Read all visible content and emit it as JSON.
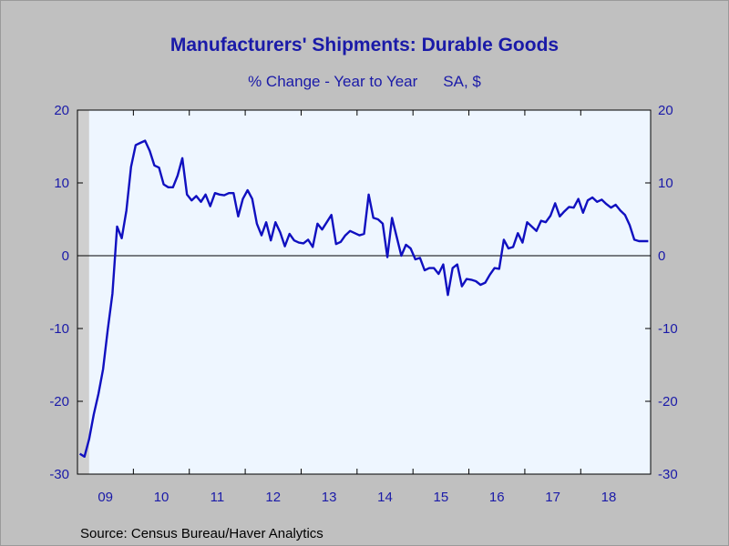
{
  "chart_data": {
    "type": "line",
    "title": "Manufacturers' Shipments: Durable Goods",
    "subtitle_left": "% Change - Year to Year",
    "subtitle_right": "SA, $",
    "source": "Source:  Census Bureau/Haver Analytics",
    "xlabel": "",
    "ylabel": "",
    "ylim": [
      -30,
      20
    ],
    "yticks": [
      20,
      10,
      0,
      -10,
      -20,
      -30
    ],
    "y_tick_labels_left": [
      "20",
      "10",
      "0",
      "-10",
      "-20",
      "-30"
    ],
    "y_tick_labels_right": [
      "20",
      "10",
      "0",
      "-10",
      "-20",
      "-30"
    ],
    "x_tick_labels": [
      "09",
      "10",
      "11",
      "12",
      "13",
      "14",
      "15",
      "16",
      "17",
      "18"
    ],
    "x_start": "2009-01",
    "x_end": "2019-03",
    "recession_shading": [
      "2009-01",
      "2009-06"
    ],
    "grid": false,
    "zero_line": true,
    "series": [
      {
        "color": "#1010c0",
        "x": [
          "2009-01",
          "2009-02",
          "2009-03",
          "2009-04",
          "2009-05",
          "2009-06",
          "2009-07",
          "2009-08",
          "2009-09",
          "2009-10",
          "2009-11",
          "2009-12",
          "2010-01",
          "2010-02",
          "2010-03",
          "2010-04",
          "2010-05",
          "2010-06",
          "2010-07",
          "2010-08",
          "2010-09",
          "2010-10",
          "2010-11",
          "2010-12",
          "2011-01",
          "2011-02",
          "2011-03",
          "2011-04",
          "2011-05",
          "2011-06",
          "2011-07",
          "2011-08",
          "2011-09",
          "2011-10",
          "2011-11",
          "2011-12",
          "2012-01",
          "2012-02",
          "2012-03",
          "2012-04",
          "2012-05",
          "2012-06",
          "2012-07",
          "2012-08",
          "2012-09",
          "2012-10",
          "2012-11",
          "2012-12",
          "2013-01",
          "2013-02",
          "2013-03",
          "2013-04",
          "2013-05",
          "2013-06",
          "2013-07",
          "2013-08",
          "2013-09",
          "2013-10",
          "2013-11",
          "2013-12",
          "2014-01",
          "2014-02",
          "2014-03",
          "2014-04",
          "2014-05",
          "2014-06",
          "2014-07",
          "2014-08",
          "2014-09",
          "2014-10",
          "2014-11",
          "2014-12",
          "2015-01",
          "2015-02",
          "2015-03",
          "2015-04",
          "2015-05",
          "2015-06",
          "2015-07",
          "2015-08",
          "2015-09",
          "2015-10",
          "2015-11",
          "2015-12",
          "2016-01",
          "2016-02",
          "2016-03",
          "2016-04",
          "2016-05",
          "2016-06",
          "2016-07",
          "2016-08",
          "2016-09",
          "2016-10",
          "2016-11",
          "2016-12",
          "2017-01",
          "2017-02",
          "2017-03",
          "2017-04",
          "2017-05",
          "2017-06",
          "2017-07",
          "2017-08",
          "2017-09",
          "2017-10",
          "2017-11",
          "2017-12",
          "2018-01",
          "2018-02",
          "2018-03",
          "2018-04",
          "2018-05",
          "2018-06",
          "2018-07",
          "2018-08",
          "2018-09",
          "2018-10",
          "2018-11",
          "2018-12",
          "2019-01",
          "2019-02",
          "2019-03"
        ],
        "values": [
          -27.2,
          -27.6,
          -25.2,
          -21.8,
          -19.0,
          -15.6,
          -10.2,
          -5.2,
          4.0,
          2.4,
          6.2,
          12.2,
          15.2,
          15.5,
          15.8,
          14.4,
          12.4,
          12.1,
          9.8,
          9.4,
          9.4,
          11.0,
          13.4,
          8.4,
          7.6,
          8.2,
          7.4,
          8.4,
          6.8,
          8.6,
          8.4,
          8.3,
          8.6,
          8.6,
          5.4,
          7.8,
          9.0,
          7.8,
          4.4,
          2.8,
          4.6,
          2.1,
          4.6,
          3.2,
          1.3,
          3.0,
          2.1,
          1.8,
          1.7,
          2.2,
          1.2,
          4.4,
          3.6,
          4.6,
          5.6,
          1.6,
          1.9,
          2.8,
          3.4,
          3.1,
          2.8,
          3.0,
          8.4,
          5.2,
          5.0,
          4.4,
          -0.2,
          5.2,
          2.6,
          0.0,
          1.5,
          1.0,
          -0.5,
          -0.3,
          -2.0,
          -1.7,
          -1.7,
          -2.5,
          -1.2,
          -5.4,
          -1.7,
          -1.2,
          -4.2,
          -3.2,
          -3.3,
          -3.5,
          -4.0,
          -3.7,
          -2.6,
          -1.7,
          -1.8,
          2.2,
          1.0,
          1.2,
          3.1,
          1.8,
          4.6,
          4.0,
          3.4,
          4.8,
          4.6,
          5.5,
          7.2,
          5.4,
          6.1,
          6.7,
          6.6,
          7.8,
          5.9,
          7.6,
          8.0,
          7.4,
          7.7,
          7.1,
          6.6,
          7.0,
          6.2,
          5.6,
          4.2,
          2.2,
          2.0,
          2.0,
          2.0
        ]
      }
    ]
  }
}
